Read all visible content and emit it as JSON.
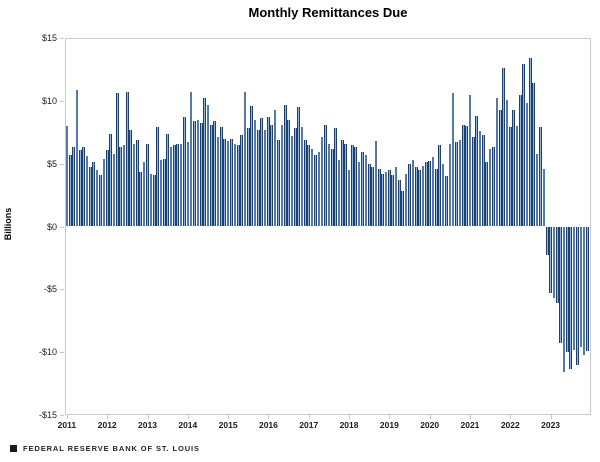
{
  "title": "Monthly Remittances Due",
  "footer": {
    "source": "FEDERAL RESERVE BANK OF ST. LOUIS"
  },
  "colors": {
    "bar_dark": "#1F4069",
    "bar_light": "#8DB4E2",
    "axis_line": "#c9c9c9",
    "text": "#1a1a1a"
  },
  "chart_data": {
    "type": "bar",
    "title": "Monthly Remittances Due",
    "ylabel": "Billions",
    "xlabel": "",
    "ylim": [
      -15,
      15
    ],
    "grid": false,
    "legend_position": "none",
    "y_tick_labels": [
      "$15",
      "$10",
      "$5",
      "$0",
      "-$5",
      "-$10",
      "-$15"
    ],
    "x_tick_labels": [
      "2011",
      "2012",
      "2013",
      "2014",
      "2015",
      "2016",
      "2017",
      "2018",
      "2019",
      "2020",
      "2021",
      "2022",
      "2023"
    ],
    "frequency": "monthly",
    "units": "Billions of dollars",
    "years": [
      {
        "year": "2011",
        "values": [
          8.0,
          5.7,
          6.3,
          10.9,
          6.1,
          6.3,
          5.6,
          4.7,
          5.1,
          4.5,
          4.1,
          5.4
        ]
      },
      {
        "year": "2012",
        "values": [
          6.1,
          7.4,
          5.8,
          10.6,
          6.3,
          6.5,
          10.7,
          7.7,
          6.6,
          6.9,
          4.3,
          5.1
        ]
      },
      {
        "year": "2013",
        "values": [
          6.6,
          4.2,
          4.1,
          7.9,
          5.3,
          5.4,
          7.4,
          6.3,
          6.5,
          6.6,
          6.6,
          8.7
        ]
      },
      {
        "year": "2014",
        "values": [
          6.7,
          10.7,
          8.4,
          8.5,
          8.2,
          10.2,
          9.7,
          8.1,
          8.4,
          7.1,
          7.9,
          7.0
        ]
      },
      {
        "year": "2015",
        "values": [
          6.8,
          7.0,
          6.6,
          6.5,
          7.3,
          10.7,
          7.8,
          9.6,
          8.5,
          7.7,
          8.6,
          7.7
        ]
      },
      {
        "year": "2016",
        "values": [
          8.7,
          8.1,
          9.3,
          6.9,
          8.1,
          9.7,
          8.5,
          7.2,
          7.8,
          9.5,
          7.9,
          6.9
        ]
      },
      {
        "year": "2017",
        "values": [
          6.5,
          6.2,
          5.7,
          5.9,
          7.1,
          8.1,
          6.6,
          6.2,
          7.8,
          5.3,
          6.9,
          6.6
        ]
      },
      {
        "year": "2018",
        "values": [
          4.5,
          6.5,
          6.3,
          5.1,
          5.9,
          5.7,
          5.0,
          4.7,
          6.8,
          4.6,
          4.2,
          4.3
        ]
      },
      {
        "year": "2019",
        "values": [
          4.5,
          4.1,
          4.7,
          3.7,
          2.8,
          4.2,
          5.0,
          5.3,
          4.7,
          4.5,
          4.8,
          5.1
        ]
      },
      {
        "year": "2020",
        "values": [
          5.2,
          5.5,
          4.6,
          6.5,
          5.0,
          4.0,
          6.6,
          10.6,
          6.7,
          6.9,
          8.1,
          8.0
        ]
      },
      {
        "year": "2021",
        "values": [
          10.5,
          7.1,
          8.8,
          7.6,
          7.3,
          5.1,
          6.2,
          6.3,
          10.2,
          9.3,
          12.6,
          10.1
        ]
      },
      {
        "year": "2022",
        "values": [
          7.9,
          9.3,
          8.0,
          10.5,
          12.9,
          9.8,
          13.4,
          11.4,
          5.8,
          7.9,
          4.6,
          -2.3
        ]
      },
      {
        "year": "2023",
        "values": [
          -5.3,
          -5.7,
          -6.1,
          -9.3,
          -11.6,
          -10.0,
          -11.3,
          -9.8,
          -11.0,
          -9.6,
          -10.2,
          -9.9
        ]
      }
    ]
  }
}
